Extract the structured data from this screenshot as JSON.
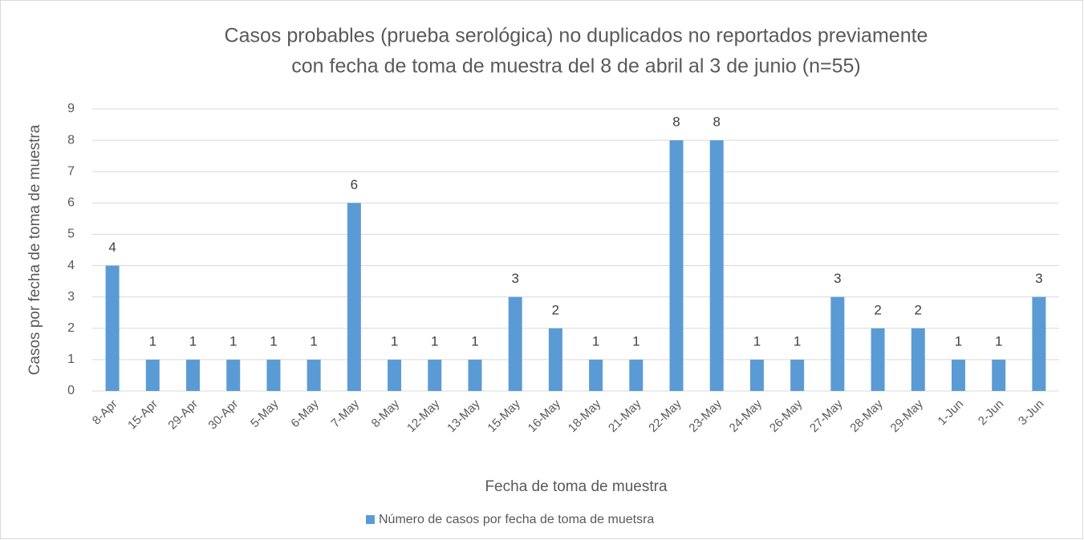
{
  "chart_data": {
    "type": "bar",
    "title": [
      "Casos probables (prueba serológica) no duplicados no reportados previamente",
      "con fecha de toma de muestra del 8 de abril al 3 de junio (n=55)"
    ],
    "x_label": "Fecha de toma de muestra",
    "y_label": "Casos por fecha de toma de muestra",
    "categories": [
      "8-Apr",
      "15-Apr",
      "29-Apr",
      "30-Apr",
      "5-May",
      "6-May",
      "7-May",
      "8-May",
      "12-May",
      "13-May",
      "15-May",
      "16-May",
      "18-May",
      "21-May",
      "22-May",
      "23-May",
      "24-May",
      "26-May",
      "27-May",
      "28-May",
      "29-May",
      "1-Jun",
      "2-Jun",
      "3-Jun"
    ],
    "series": [
      {
        "name": "Número de casos por fecha de toma de muetsra",
        "color": "#5b9bd5",
        "values": [
          4,
          1,
          1,
          1,
          1,
          1,
          6,
          1,
          1,
          1,
          3,
          2,
          1,
          1,
          8,
          8,
          1,
          1,
          3,
          2,
          2,
          1,
          1,
          3
        ]
      }
    ],
    "ylim": [
      0,
      9
    ],
    "yticks": [
      0,
      1,
      2,
      3,
      4,
      5,
      6,
      7,
      8,
      9
    ],
    "grid": true,
    "legend": "bottom"
  }
}
